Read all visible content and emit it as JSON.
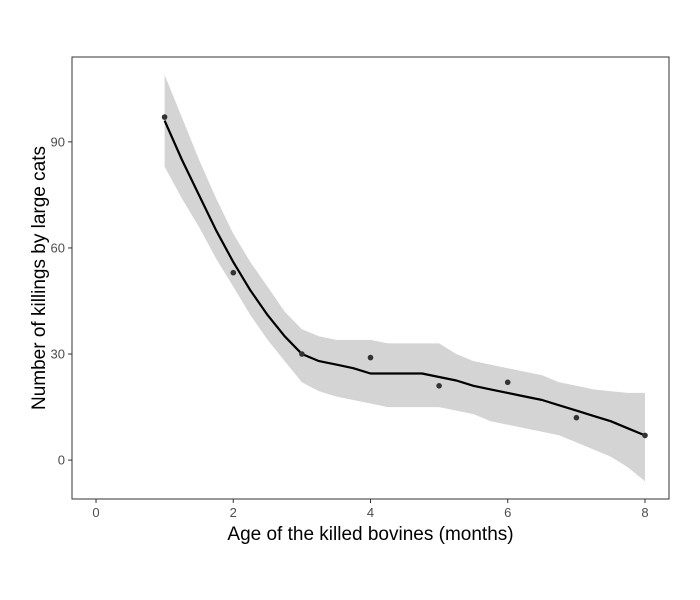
{
  "chart_data": {
    "type": "scatter",
    "title": "",
    "xlabel": "Age of the killed bovines (months)",
    "ylabel": "Number of killings by large cats",
    "xlim": [
      -0.35,
      8.35
    ],
    "ylim": [
      -11,
      114
    ],
    "x_ticks": [
      0,
      2,
      4,
      6,
      8
    ],
    "y_ticks": [
      0,
      30,
      60,
      90
    ],
    "grid": false,
    "legend": "none",
    "points": {
      "x": [
        1,
        2,
        3,
        4,
        5,
        6,
        7,
        8
      ],
      "y": [
        97,
        53,
        30,
        29,
        21,
        22,
        12,
        7
      ]
    },
    "smooth_fit": {
      "x": [
        1,
        1.25,
        1.5,
        1.75,
        2,
        2.25,
        2.5,
        2.75,
        3,
        3.25,
        3.5,
        3.75,
        4,
        4.25,
        4.5,
        4.75,
        5,
        5.25,
        5.5,
        5.75,
        6,
        6.25,
        6.5,
        6.75,
        7,
        7.25,
        7.5,
        7.75,
        8
      ],
      "y": [
        96,
        85,
        75,
        65,
        56,
        48,
        41,
        35,
        30,
        28,
        27,
        26,
        24.5,
        24.5,
        24.5,
        24.5,
        23.5,
        22.5,
        21,
        20,
        19,
        18,
        17,
        15.5,
        14,
        12.5,
        11,
        9,
        7
      ],
      "lower": [
        83,
        74,
        66,
        57,
        49,
        41,
        34,
        28,
        22,
        19.5,
        18,
        17,
        16,
        15,
        15,
        15,
        15,
        14,
        13,
        11,
        10,
        9,
        8,
        7,
        5,
        3,
        1,
        -2,
        -6
      ],
      "upper": [
        109,
        97,
        85,
        74,
        64,
        56,
        49,
        42,
        37,
        35,
        34,
        34,
        34,
        33,
        33,
        33,
        33,
        30,
        28,
        27,
        26,
        25,
        24,
        22,
        21,
        20,
        19.5,
        19,
        19
      ]
    },
    "colors": {
      "points": "#333333",
      "line": "#000000",
      "ribbon": "#d4d4d4",
      "panel_border": "#333333",
      "tick_label": "#4d4d4d"
    }
  }
}
